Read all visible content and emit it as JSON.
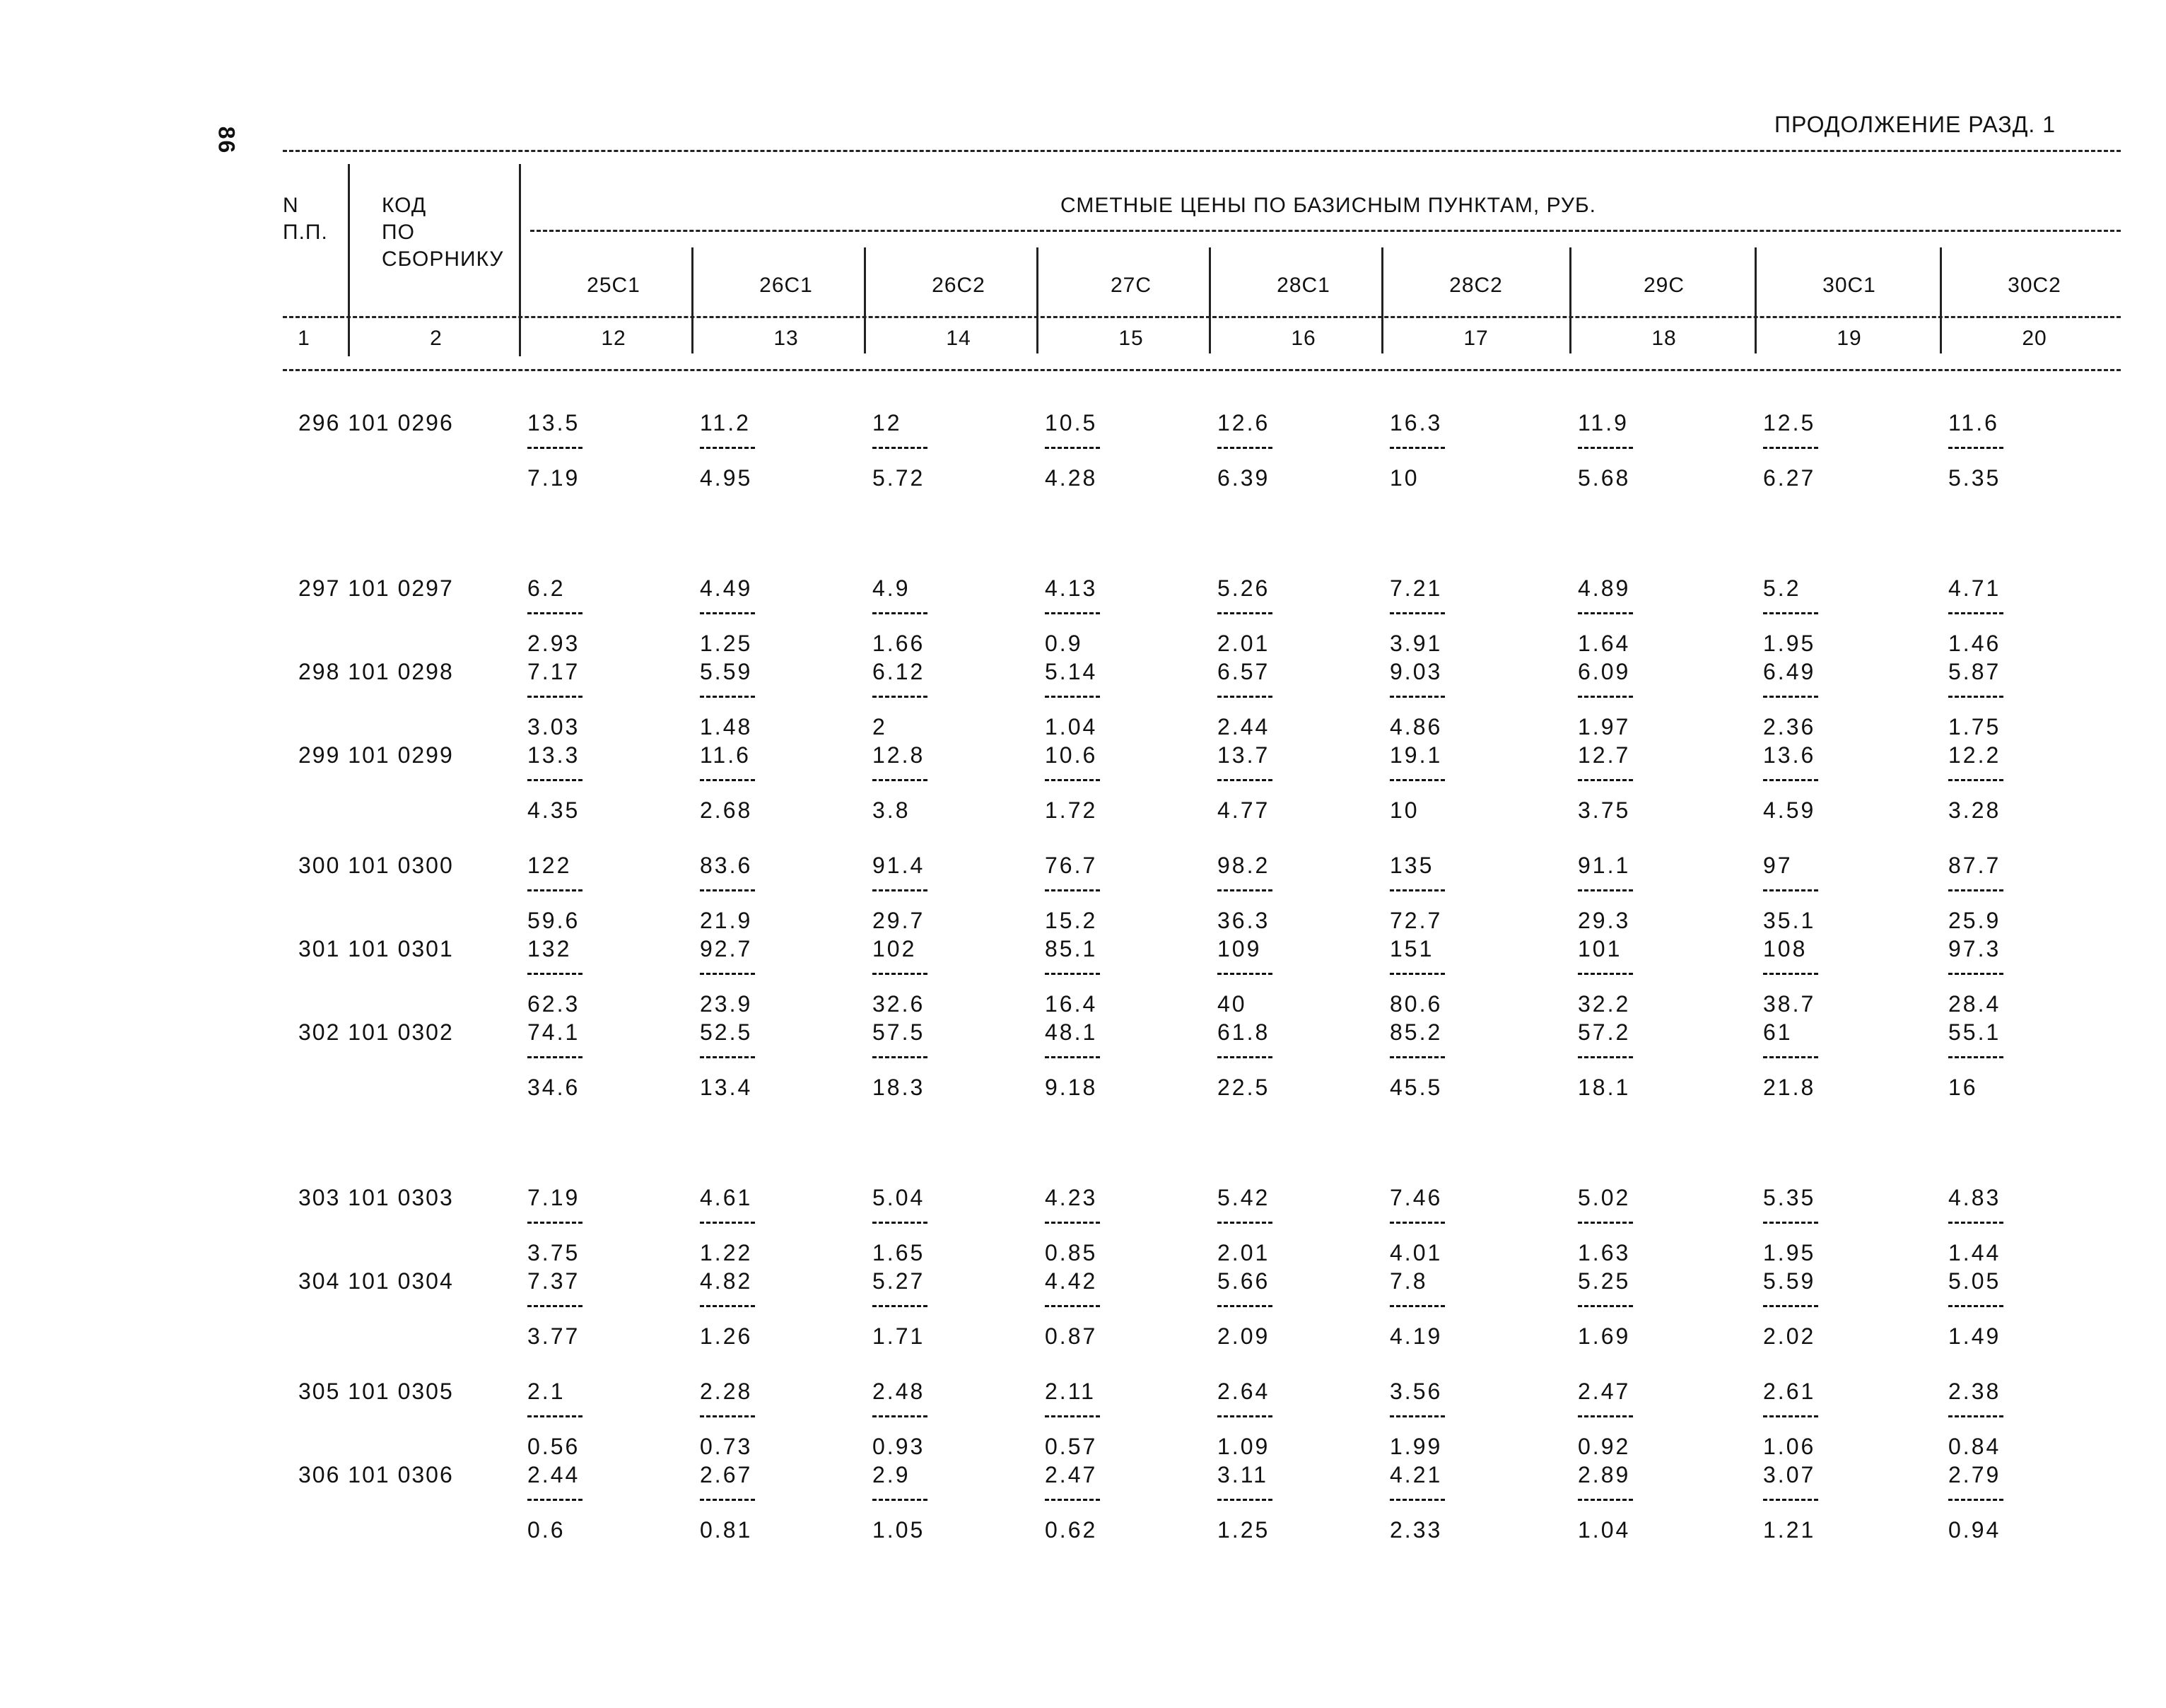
{
  "page_number": "86",
  "continuation": "ПРОДОЛЖЕНИЕ РАЗД. 1",
  "header": {
    "n_label": "N\nП.П.",
    "code_label": "КОД\nПО\nСБОРНИКУ",
    "prices_title": "СМЕТНЫЕ ЦЕНЫ ПО БАЗИСНЫМ ПУНКТАМ, РУБ.",
    "columns": [
      "25С1",
      "26С1",
      "26С2",
      "27С",
      "28С1",
      "28С2",
      "29С",
      "30С1",
      "30С2"
    ],
    "index_row": [
      "1",
      "2",
      "12",
      "13",
      "14",
      "15",
      "16",
      "17",
      "18",
      "19",
      "20"
    ]
  },
  "rows": [
    {
      "id": "296 101 0296",
      "top": [
        "13.5",
        "11.2",
        "12",
        "10.5",
        "12.6",
        "16.3",
        "11.9",
        "12.5",
        "11.6"
      ],
      "bottom": [
        "7.19",
        "4.95",
        "5.72",
        "4.28",
        "6.39",
        "10",
        "5.68",
        "6.27",
        "5.35"
      ]
    },
    {
      "id": "297 101 0297",
      "top": [
        "6.2",
        "4.49",
        "4.9",
        "4.13",
        "5.26",
        "7.21",
        "4.89",
        "5.2",
        "4.71"
      ],
      "bottom": [
        "2.93",
        "1.25",
        "1.66",
        "0.9",
        "2.01",
        "3.91",
        "1.64",
        "1.95",
        "1.46"
      ]
    },
    {
      "id": "298 101 0298",
      "top": [
        "7.17",
        "5.59",
        "6.12",
        "5.14",
        "6.57",
        "9.03",
        "6.09",
        "6.49",
        "5.87"
      ],
      "bottom": [
        "3.03",
        "1.48",
        "2",
        "1.04",
        "2.44",
        "4.86",
        "1.97",
        "2.36",
        "1.75"
      ]
    },
    {
      "id": "299 101 0299",
      "top": [
        "13.3",
        "11.6",
        "12.8",
        "10.6",
        "13.7",
        "19.1",
        "12.7",
        "13.6",
        "12.2"
      ],
      "bottom": [
        "4.35",
        "2.68",
        "3.8",
        "1.72",
        "4.77",
        "10",
        "3.75",
        "4.59",
        "3.28"
      ]
    },
    {
      "id": "300 101 0300",
      "top": [
        "122",
        "83.6",
        "91.4",
        "76.7",
        "98.2",
        "135",
        "91.1",
        "97",
        "87.7"
      ],
      "bottom": [
        "59.6",
        "21.9",
        "29.7",
        "15.2",
        "36.3",
        "72.7",
        "29.3",
        "35.1",
        "25.9"
      ]
    },
    {
      "id": "301 101 0301",
      "top": [
        "132",
        "92.7",
        "102",
        "85.1",
        "109",
        "151",
        "101",
        "108",
        "97.3"
      ],
      "bottom": [
        "62.3",
        "23.9",
        "32.6",
        "16.4",
        "40",
        "80.6",
        "32.2",
        "38.7",
        "28.4"
      ]
    },
    {
      "id": "302 101 0302",
      "top": [
        "74.1",
        "52.5",
        "57.5",
        "48.1",
        "61.8",
        "85.2",
        "57.2",
        "61",
        "55.1"
      ],
      "bottom": [
        "34.6",
        "13.4",
        "18.3",
        "9.18",
        "22.5",
        "45.5",
        "18.1",
        "21.8",
        "16"
      ]
    },
    {
      "id": "303 101 0303",
      "top": [
        "7.19",
        "4.61",
        "5.04",
        "4.23",
        "5.42",
        "7.46",
        "5.02",
        "5.35",
        "4.83"
      ],
      "bottom": [
        "3.75",
        "1.22",
        "1.65",
        "0.85",
        "2.01",
        "4.01",
        "1.63",
        "1.95",
        "1.44"
      ]
    },
    {
      "id": "304 101 0304",
      "top": [
        "7.37",
        "4.82",
        "5.27",
        "4.42",
        "5.66",
        "7.8",
        "5.25",
        "5.59",
        "5.05"
      ],
      "bottom": [
        "3.77",
        "1.26",
        "1.71",
        "0.87",
        "2.09",
        "4.19",
        "1.69",
        "2.02",
        "1.49"
      ]
    },
    {
      "id": "305 101 0305",
      "top": [
        "2.1",
        "2.28",
        "2.48",
        "2.11",
        "2.64",
        "3.56",
        "2.47",
        "2.61",
        "2.38"
      ],
      "bottom": [
        "0.56",
        "0.73",
        "0.93",
        "0.57",
        "1.09",
        "1.99",
        "0.92",
        "1.06",
        "0.84"
      ]
    },
    {
      "id": "306 101 0306",
      "top": [
        "2.44",
        "2.67",
        "2.9",
        "2.47",
        "3.11",
        "4.21",
        "2.89",
        "3.07",
        "2.79"
      ],
      "bottom": [
        "0.6",
        "0.81",
        "1.05",
        "0.62",
        "1.25",
        "2.33",
        "1.04",
        "1.21",
        "0.94"
      ]
    }
  ]
}
